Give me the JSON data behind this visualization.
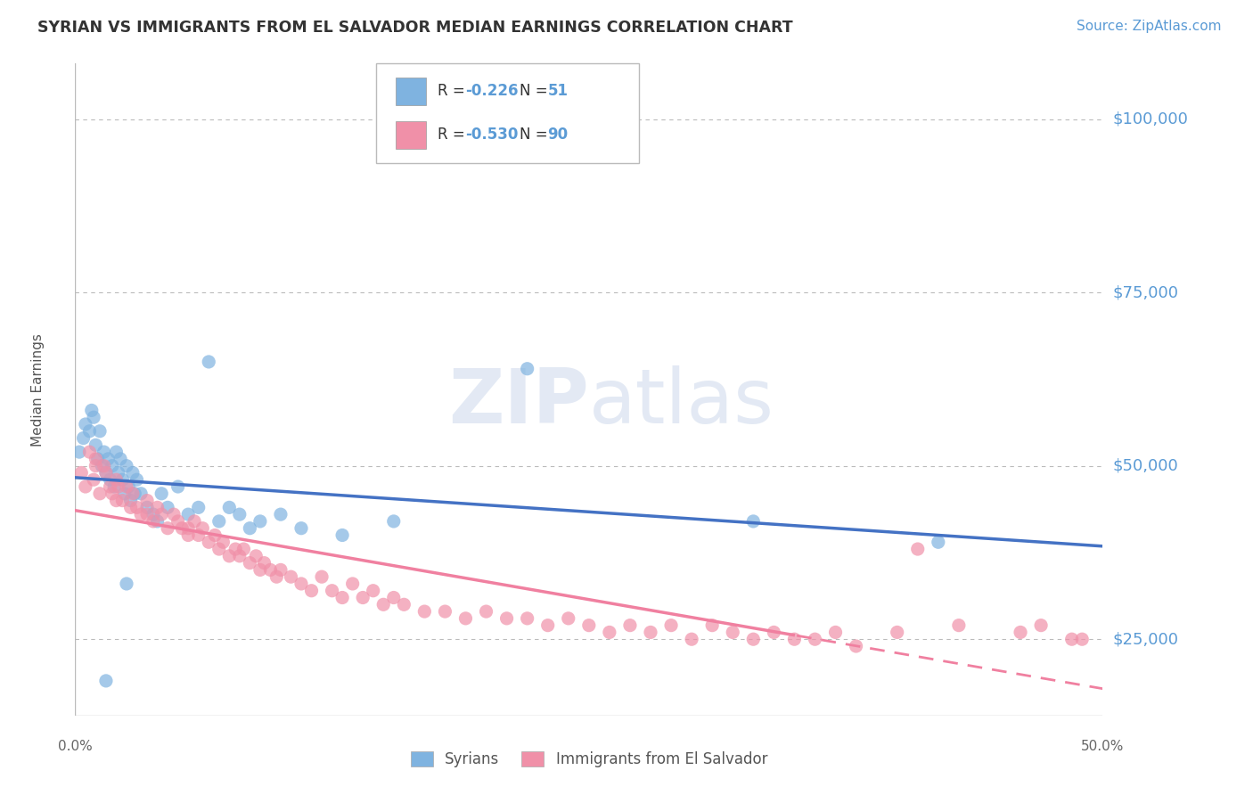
{
  "title": "SYRIAN VS IMMIGRANTS FROM EL SALVADOR MEDIAN EARNINGS CORRELATION CHART",
  "source": "Source: ZipAtlas.com",
  "ylabel": "Median Earnings",
  "y_ticks": [
    25000,
    50000,
    75000,
    100000
  ],
  "y_tick_labels": [
    "$25,000",
    "$50,000",
    "$75,000",
    "$100,000"
  ],
  "x_min": 0.0,
  "x_max": 50.0,
  "y_min": 14000,
  "y_max": 108000,
  "watermark": "ZIPatlas",
  "title_color": "#333333",
  "source_color": "#5b9bd5",
  "tick_color": "#5b9bd5",
  "syrian_color": "#7fb3e0",
  "salvador_color": "#f090a8",
  "syrian_trend_color": "#4472c4",
  "salvador_trend_color": "#f080a0",
  "legend_label_syrian": "Syrians",
  "legend_label_salvador": "Immigrants from El Salvador",
  "legend_R1": "-0.226",
  "legend_N1": "51",
  "legend_R2": "-0.530",
  "legend_N2": "90",
  "syrian_points_x": [
    0.2,
    0.4,
    0.5,
    0.7,
    0.8,
    0.9,
    1.0,
    1.1,
    1.2,
    1.3,
    1.4,
    1.5,
    1.6,
    1.7,
    1.8,
    1.9,
    2.0,
    2.1,
    2.2,
    2.3,
    2.4,
    2.5,
    2.6,
    2.7,
    2.8,
    2.9,
    3.0,
    3.2,
    3.5,
    3.8,
    4.0,
    4.2,
    4.5,
    5.0,
    5.5,
    6.0,
    6.5,
    7.0,
    7.5,
    8.0,
    8.5,
    9.0,
    10.0,
    11.0,
    13.0,
    15.5,
    22.0,
    33.0,
    42.0,
    2.5,
    1.5
  ],
  "syrian_points_y": [
    52000,
    54000,
    56000,
    55000,
    58000,
    57000,
    53000,
    51000,
    55000,
    50000,
    52000,
    49000,
    51000,
    48000,
    50000,
    47000,
    52000,
    49000,
    51000,
    48000,
    46000,
    50000,
    47000,
    45000,
    49000,
    46000,
    48000,
    46000,
    44000,
    43000,
    42000,
    46000,
    44000,
    47000,
    43000,
    44000,
    65000,
    42000,
    44000,
    43000,
    41000,
    42000,
    43000,
    41000,
    40000,
    42000,
    64000,
    42000,
    39000,
    33000,
    19000
  ],
  "salvador_points_x": [
    0.3,
    0.5,
    0.7,
    0.9,
    1.0,
    1.2,
    1.4,
    1.5,
    1.7,
    1.8,
    2.0,
    2.1,
    2.3,
    2.5,
    2.7,
    2.8,
    3.0,
    3.2,
    3.5,
    3.8,
    4.0,
    4.2,
    4.5,
    4.8,
    5.0,
    5.2,
    5.5,
    5.8,
    6.0,
    6.2,
    6.5,
    6.8,
    7.0,
    7.2,
    7.5,
    7.8,
    8.0,
    8.2,
    8.5,
    8.8,
    9.0,
    9.2,
    9.5,
    9.8,
    10.0,
    10.5,
    11.0,
    11.5,
    12.0,
    12.5,
    13.0,
    13.5,
    14.0,
    14.5,
    15.0,
    15.5,
    16.0,
    17.0,
    18.0,
    19.0,
    20.0,
    21.0,
    22.0,
    23.0,
    24.0,
    25.0,
    26.0,
    27.0,
    28.0,
    29.0,
    30.0,
    31.0,
    32.0,
    33.0,
    34.0,
    35.0,
    36.0,
    37.0,
    38.0,
    40.0,
    41.0,
    43.0,
    46.0,
    47.0,
    48.5,
    49.0,
    1.0,
    2.0,
    3.5,
    5.5
  ],
  "salvador_points_y": [
    49000,
    47000,
    52000,
    48000,
    51000,
    46000,
    50000,
    49000,
    47000,
    46000,
    48000,
    47000,
    45000,
    47000,
    44000,
    46000,
    44000,
    43000,
    45000,
    42000,
    44000,
    43000,
    41000,
    43000,
    42000,
    41000,
    40000,
    42000,
    40000,
    41000,
    39000,
    40000,
    38000,
    39000,
    37000,
    38000,
    37000,
    38000,
    36000,
    37000,
    35000,
    36000,
    35000,
    34000,
    35000,
    34000,
    33000,
    32000,
    34000,
    32000,
    31000,
    33000,
    31000,
    32000,
    30000,
    31000,
    30000,
    29000,
    29000,
    28000,
    29000,
    28000,
    28000,
    27000,
    28000,
    27000,
    26000,
    27000,
    26000,
    27000,
    25000,
    27000,
    26000,
    25000,
    26000,
    25000,
    25000,
    26000,
    24000,
    26000,
    38000,
    27000,
    26000,
    27000,
    25000,
    25000,
    50000,
    45000,
    43000,
    41000
  ]
}
